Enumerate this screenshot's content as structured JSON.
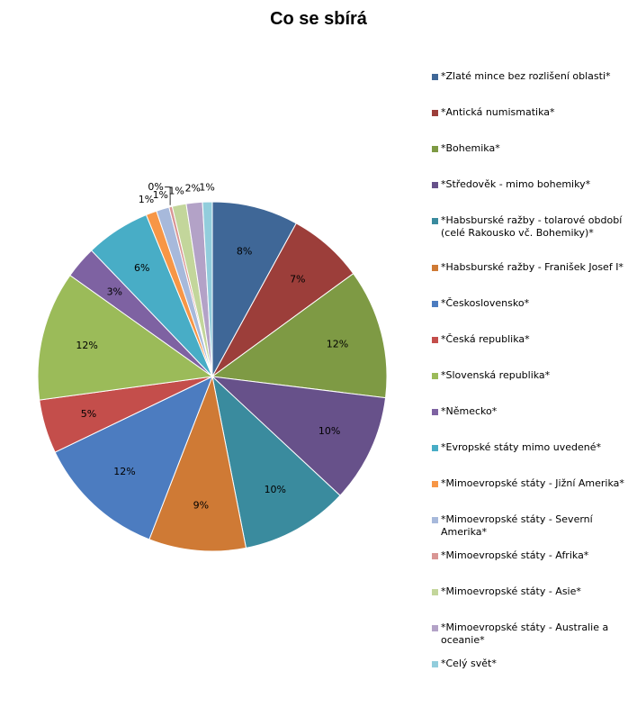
{
  "chart_data": {
    "type": "pie",
    "title": "Co se sbírá",
    "legend_position": "right",
    "slices": [
      {
        "label": "*Zlaté mince bez rozlišení oblasti*",
        "value": 8,
        "value_label": "8%",
        "color": "#3F6797"
      },
      {
        "label": "*Antická numismatika*",
        "value": 7,
        "value_label": "7%",
        "color": "#9C3E3A"
      },
      {
        "label": "*Bohemika*",
        "value": 12,
        "value_label": "12%",
        "color": "#7E9A44"
      },
      {
        "label": "*Středověk - mimo bohemiky*",
        "value": 10,
        "value_label": "10%",
        "color": "#67518A"
      },
      {
        "label": "*Habsburské ražby - tolarové období (celé Rakousko vč. Bohemiky)*",
        "value": 10,
        "value_label": "10%",
        "color": "#3A8B9E"
      },
      {
        "label": "*Habsburské ražby - Franišek Josef I*",
        "value": 9,
        "value_label": "9%",
        "color": "#CF7A35"
      },
      {
        "label": "*Československo*",
        "value": 12,
        "value_label": "12%",
        "color": "#4C7CC0"
      },
      {
        "label": "*Česká republika*",
        "value": 5,
        "value_label": "5%",
        "color": "#C44E4B"
      },
      {
        "label": "*Slovenská republika*",
        "value": 12,
        "value_label": "12%",
        "color": "#9BBB59"
      },
      {
        "label": "*Německo*",
        "value": 3,
        "value_label": "3%",
        "color": "#7E62A2"
      },
      {
        "label": "*Evropské státy mimo uvedené*",
        "value": 6,
        "value_label": "6%",
        "color": "#48ADC6"
      },
      {
        "label": "*Mimoevropské státy - Jižní Amerika*",
        "value": 1,
        "value_label": "1%",
        "color": "#F79646"
      },
      {
        "label": "*Mimoevropské státy - Severní Amerika*",
        "value": 1.2,
        "value_label": "1%",
        "color": "#A7B9DB"
      },
      {
        "label": "*Mimoevropské státy - Afrika*",
        "value": 0.3,
        "value_label": "0%",
        "color": "#D99694"
      },
      {
        "label": "*Mimoevropské státy - Asie*",
        "value": 1.3,
        "value_label": "1%",
        "color": "#C3D69B"
      },
      {
        "label": "*Mimoevropské státy - Australie a oceanie*",
        "value": 1.5,
        "value_label": "2%",
        "color": "#B3A2C7"
      },
      {
        "label": "*Celý svět*",
        "value": 0.9,
        "value_label": "1%",
        "color": "#92CDDC"
      }
    ]
  }
}
